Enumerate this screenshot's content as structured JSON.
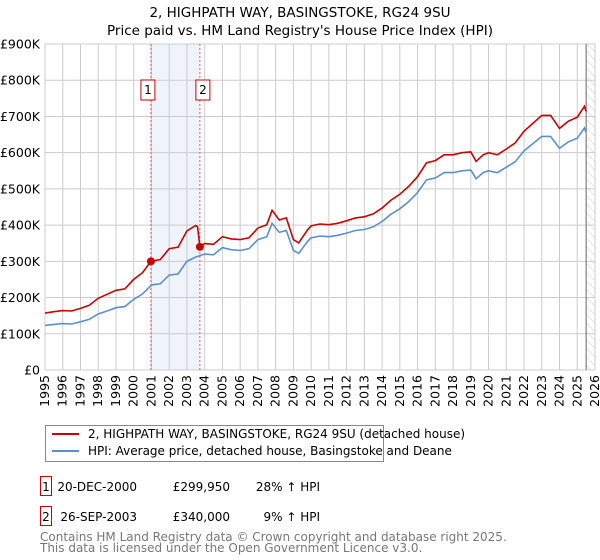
{
  "chart_data": {
    "type": "line",
    "title": "2, HIGHPATH WAY, BASINGSTOKE, RG24 9SU",
    "subtitle": "Price paid vs. HM Land Registry's House Price Index (HPI)",
    "xlim": [
      1995,
      2026
    ],
    "ylim": [
      0,
      900000
    ],
    "x_ticks": [
      "1995",
      "1996",
      "1997",
      "1998",
      "1999",
      "2000",
      "2001",
      "2002",
      "2003",
      "2004",
      "2005",
      "2006",
      "2007",
      "2008",
      "2009",
      "2010",
      "2011",
      "2012",
      "2013",
      "2014",
      "2015",
      "2016",
      "2017",
      "2018",
      "2019",
      "2020",
      "2021",
      "2022",
      "2023",
      "2024",
      "2025",
      "2026"
    ],
    "y_ticks": [
      {
        "v": 0,
        "label": "£0"
      },
      {
        "v": 100000,
        "label": "£100K"
      },
      {
        "v": 200000,
        "label": "£200K"
      },
      {
        "v": 300000,
        "label": "£300K"
      },
      {
        "v": 400000,
        "label": "£400K"
      },
      {
        "v": 500000,
        "label": "£500K"
      },
      {
        "v": 600000,
        "label": "£600K"
      },
      {
        "v": 700000,
        "label": "£700K"
      },
      {
        "v": 800000,
        "label": "£800K"
      },
      {
        "v": 900000,
        "label": "£900K"
      }
    ],
    "grid": true,
    "colors": {
      "price": "#cc0000",
      "hpi": "#5b8fd0",
      "shade": "#eef3fc",
      "vline": "#ee5555"
    },
    "series": [
      {
        "name": "2, HIGHPATH WAY, BASINGSTOKE, RG24 9SU (detached house)",
        "x": [
          1995,
          1995.5,
          1996,
          1996.5,
          1997,
          1997.5,
          1998,
          1998.5,
          1999,
          1999.5,
          2000,
          2000.5,
          2000.97,
          2001.5,
          2002,
          2002.5,
          2003,
          2003.5,
          2003.6,
          2003.73,
          2004,
          2004.5,
          2005,
          2005.5,
          2006,
          2006.5,
          2007,
          2007.5,
          2007.8,
          2008.2,
          2008.6,
          2009,
          2009.3,
          2009.8,
          2010,
          2010.5,
          2011,
          2011.5,
          2012,
          2012.5,
          2013,
          2013.5,
          2014,
          2014.5,
          2015,
          2015.5,
          2016,
          2016.5,
          2017,
          2017.5,
          2018,
          2018.5,
          2019,
          2019.3,
          2019.7,
          2020,
          2020.5,
          2021,
          2021.5,
          2022,
          2022.5,
          2023,
          2023.5,
          2024,
          2024.5,
          2025,
          2025.4,
          2025.5
        ],
        "y": [
          157000,
          161000,
          164000,
          163000,
          170000,
          179000,
          198000,
          209000,
          220000,
          224000,
          250000,
          269000,
          299950,
          305000,
          335000,
          339000,
          384000,
          399000,
          395000,
          340000,
          349000,
          347000,
          368000,
          362000,
          360000,
          365000,
          392000,
          401000,
          441000,
          414000,
          420000,
          360000,
          351000,
          387000,
          398000,
          403000,
          401000,
          405000,
          412000,
          420000,
          423000,
          431000,
          447000,
          469000,
          485000,
          507000,
          534000,
          572000,
          578000,
          594000,
          594000,
          600000,
          602000,
          576000,
          594000,
          600000,
          594000,
          610000,
          627000,
          659000,
          681000,
          703000,
          703000,
          667000,
          687000,
          698000,
          728000,
          714000
        ]
      },
      {
        "name": "HPI: Average price, detached house, Basingstoke and Deane",
        "x": [
          1995,
          1995.5,
          1996,
          1996.5,
          1997,
          1997.5,
          1998,
          1998.5,
          1999,
          1999.5,
          2000,
          2000.5,
          2001,
          2001.5,
          2002,
          2002.5,
          2003,
          2003.5,
          2004,
          2004.5,
          2005,
          2005.5,
          2006,
          2006.5,
          2007,
          2007.5,
          2007.8,
          2008.2,
          2008.6,
          2009,
          2009.3,
          2009.8,
          2010,
          2010.5,
          2011,
          2011.5,
          2012,
          2012.5,
          2013,
          2013.5,
          2014,
          2014.5,
          2015,
          2015.5,
          2016,
          2016.5,
          2017,
          2017.5,
          2018,
          2018.5,
          2019,
          2019.3,
          2019.7,
          2020,
          2020.5,
          2021,
          2021.5,
          2022,
          2022.5,
          2023,
          2023.5,
          2024,
          2024.5,
          2025,
          2025.4,
          2025.5
        ],
        "y": [
          123000,
          126000,
          128000,
          127000,
          133000,
          140000,
          155000,
          163000,
          172000,
          175000,
          195000,
          210000,
          235000,
          238000,
          262000,
          265000,
          300000,
          312000,
          320000,
          318000,
          338000,
          332000,
          330000,
          335000,
          360000,
          368000,
          405000,
          380000,
          385000,
          330000,
          322000,
          355000,
          365000,
          370000,
          368000,
          372000,
          378000,
          385000,
          388000,
          395000,
          410000,
          430000,
          445000,
          465000,
          490000,
          525000,
          530000,
          545000,
          545000,
          550000,
          552000,
          528000,
          545000,
          550000,
          545000,
          560000,
          575000,
          605000,
          625000,
          645000,
          645000,
          612000,
          630000,
          640000,
          668000,
          655000
        ]
      }
    ],
    "sales": [
      {
        "label": "1",
        "x": 2000.97,
        "price": 299950,
        "date": "20-DEC-2000",
        "price_text": "£299,950",
        "hpi_text": "28% ↑ HPI"
      },
      {
        "label": "2",
        "x": 2003.73,
        "price": 340000,
        "date": "26-SEP-2003",
        "price_text": "£340,000",
        "hpi_text": "9% ↑ HPI"
      }
    ],
    "forecast_from": 2025.5,
    "legend_placement": "below"
  },
  "footer": {
    "line1": "Contains HM Land Registry data © Crown copyright and database right 2025.",
    "line2": "This data is licensed under the Open Government Licence v3.0."
  }
}
